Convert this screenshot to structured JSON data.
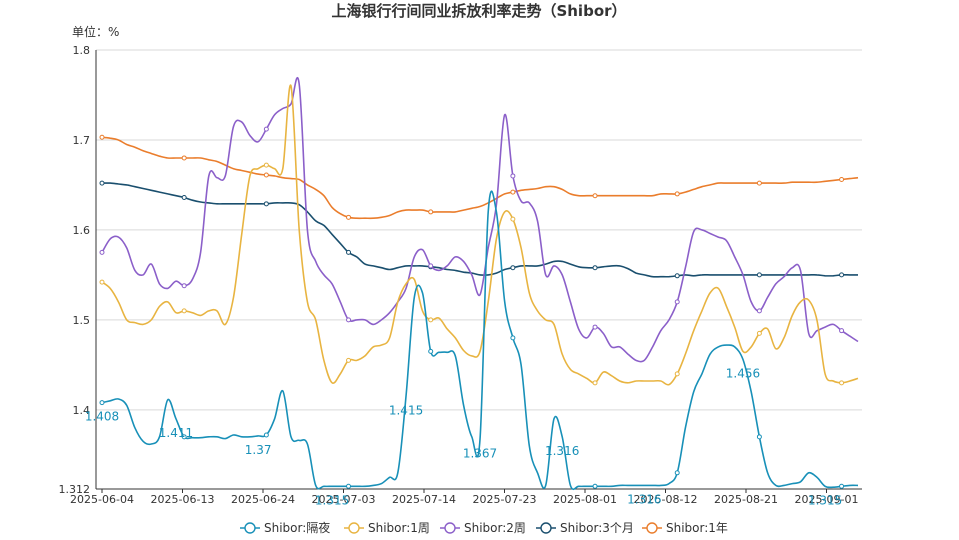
{
  "chart_data": {
    "type": "line",
    "title": "上海银行行间同业拆放利率走势（Shibor）",
    "unit_label": "单位：%",
    "ylim": [
      1.312,
      1.8
    ],
    "y_ticks": [
      "1.312",
      "1.4",
      "1.5",
      "1.6",
      "1.7",
      "1.8"
    ],
    "x_ticks": [
      "2025-06-04",
      "2025-06-13",
      "2025-06-24",
      "2025-07-03",
      "2025-07-14",
      "2025-07-23",
      "2025-08-01",
      "2025-08-12",
      "2025-08-21",
      "2025-09-01"
    ],
    "grid": true,
    "legend_position": "bottom",
    "series": [
      {
        "name": "Shibor:隔夜",
        "color": "#1890b8",
        "values": [
          1.408,
          1.41,
          1.412,
          1.405,
          1.38,
          1.365,
          1.362,
          1.37,
          1.411,
          1.39,
          1.37,
          1.369,
          1.369,
          1.37,
          1.37,
          1.368,
          1.372,
          1.37,
          1.37,
          1.371,
          1.372,
          1.39,
          1.421,
          1.37,
          1.366,
          1.362,
          1.316,
          1.315,
          1.315,
          1.315,
          1.315,
          1.315,
          1.315,
          1.316,
          1.318,
          1.325,
          1.33,
          1.415,
          1.525,
          1.53,
          1.465,
          1.464,
          1.464,
          1.46,
          1.405,
          1.37,
          1.367,
          1.62,
          1.62,
          1.52,
          1.48,
          1.45,
          1.36,
          1.33,
          1.316,
          1.39,
          1.37,
          1.316,
          1.315,
          1.315,
          1.315,
          1.315,
          1.315,
          1.316,
          1.316,
          1.316,
          1.316,
          1.316,
          1.316,
          1.318,
          1.33,
          1.38,
          1.42,
          1.44,
          1.462,
          1.47,
          1.472,
          1.47,
          1.456,
          1.42,
          1.37,
          1.33,
          1.316,
          1.316,
          1.318,
          1.32,
          1.33,
          1.325,
          1.315,
          1.314,
          1.315,
          1.316,
          1.316
        ],
        "labels": [
          [
            0,
            "1.408"
          ],
          [
            9,
            "1.411"
          ],
          [
            19,
            "1.37"
          ],
          [
            28,
            "1.315"
          ],
          [
            37,
            "1.415"
          ],
          [
            46,
            "1.367"
          ],
          [
            56,
            "1.316"
          ],
          [
            66,
            "1.316"
          ],
          [
            78,
            "1.456"
          ],
          [
            88,
            "1.315"
          ]
        ]
      },
      {
        "name": "Shibor:1周",
        "color": "#e8b441",
        "values": [
          1.542,
          1.535,
          1.52,
          1.5,
          1.497,
          1.495,
          1.5,
          1.515,
          1.52,
          1.508,
          1.51,
          1.508,
          1.505,
          1.51,
          1.51,
          1.495,
          1.525,
          1.595,
          1.66,
          1.668,
          1.672,
          1.668,
          1.668,
          1.76,
          1.6,
          1.52,
          1.5,
          1.455,
          1.43,
          1.44,
          1.455,
          1.455,
          1.46,
          1.47,
          1.472,
          1.48,
          1.52,
          1.54,
          1.545,
          1.51,
          1.5,
          1.502,
          1.49,
          1.48,
          1.466,
          1.46,
          1.465,
          1.52,
          1.59,
          1.62,
          1.612,
          1.58,
          1.53,
          1.51,
          1.5,
          1.495,
          1.462,
          1.445,
          1.44,
          1.435,
          1.43,
          1.442,
          1.438,
          1.432,
          1.43,
          1.432,
          1.432,
          1.432,
          1.432,
          1.428,
          1.44,
          1.462,
          1.488,
          1.51,
          1.53,
          1.535,
          1.515,
          1.492,
          1.465,
          1.47,
          1.485,
          1.49,
          1.468,
          1.48,
          1.505,
          1.52,
          1.522,
          1.5,
          1.44,
          1.432,
          1.43,
          1.432,
          1.435
        ],
        "labels": []
      },
      {
        "name": "Shibor:2周",
        "color": "#8b5fc9",
        "values": [
          1.575,
          1.59,
          1.592,
          1.58,
          1.555,
          1.55,
          1.562,
          1.54,
          1.535,
          1.543,
          1.538,
          1.545,
          1.575,
          1.66,
          1.658,
          1.66,
          1.715,
          1.72,
          1.705,
          1.698,
          1.712,
          1.728,
          1.735,
          1.74,
          1.762,
          1.6,
          1.565,
          1.55,
          1.54,
          1.52,
          1.5,
          1.5,
          1.5,
          1.495,
          1.5,
          1.508,
          1.52,
          1.535,
          1.57,
          1.578,
          1.56,
          1.555,
          1.56,
          1.57,
          1.565,
          1.55,
          1.528,
          1.58,
          1.628,
          1.728,
          1.66,
          1.632,
          1.63,
          1.61,
          1.55,
          1.56,
          1.55,
          1.52,
          1.49,
          1.48,
          1.492,
          1.485,
          1.47,
          1.47,
          1.462,
          1.455,
          1.455,
          1.47,
          1.488,
          1.5,
          1.52,
          1.558,
          1.598,
          1.6,
          1.596,
          1.592,
          1.588,
          1.57,
          1.55,
          1.52,
          1.51,
          1.525,
          1.54,
          1.548,
          1.558,
          1.555,
          1.485,
          1.488,
          1.492,
          1.495,
          1.488,
          1.482,
          1.476
        ],
        "labels": []
      },
      {
        "name": "Shibor:3个月",
        "color": "#1a4f6e",
        "values": [
          1.652,
          1.652,
          1.651,
          1.65,
          1.648,
          1.646,
          1.644,
          1.642,
          1.64,
          1.638,
          1.636,
          1.633,
          1.631,
          1.63,
          1.629,
          1.629,
          1.629,
          1.629,
          1.629,
          1.629,
          1.629,
          1.63,
          1.63,
          1.63,
          1.628,
          1.62,
          1.61,
          1.605,
          1.595,
          1.585,
          1.575,
          1.57,
          1.562,
          1.56,
          1.558,
          1.556,
          1.558,
          1.56,
          1.56,
          1.56,
          1.559,
          1.558,
          1.556,
          1.555,
          1.553,
          1.552,
          1.55,
          1.55,
          1.552,
          1.556,
          1.558,
          1.56,
          1.56,
          1.56,
          1.562,
          1.565,
          1.565,
          1.562,
          1.559,
          1.558,
          1.558,
          1.559,
          1.56,
          1.56,
          1.557,
          1.552,
          1.55,
          1.548,
          1.548,
          1.548,
          1.549,
          1.55,
          1.549,
          1.55,
          1.55,
          1.55,
          1.55,
          1.55,
          1.55,
          1.55,
          1.55,
          1.55,
          1.55,
          1.55,
          1.55,
          1.55,
          1.55,
          1.55,
          1.549,
          1.549,
          1.55,
          1.55,
          1.55
        ],
        "labels": []
      },
      {
        "name": "Shibor:1年",
        "color": "#ea7d2c",
        "values": [
          1.703,
          1.702,
          1.7,
          1.695,
          1.692,
          1.688,
          1.685,
          1.682,
          1.68,
          1.68,
          1.68,
          1.68,
          1.68,
          1.678,
          1.676,
          1.672,
          1.668,
          1.666,
          1.664,
          1.662,
          1.661,
          1.66,
          1.658,
          1.657,
          1.656,
          1.65,
          1.645,
          1.638,
          1.625,
          1.618,
          1.614,
          1.613,
          1.613,
          1.613,
          1.614,
          1.616,
          1.62,
          1.622,
          1.622,
          1.622,
          1.62,
          1.62,
          1.62,
          1.62,
          1.622,
          1.624,
          1.626,
          1.63,
          1.635,
          1.64,
          1.642,
          1.644,
          1.645,
          1.646,
          1.648,
          1.648,
          1.645,
          1.64,
          1.638,
          1.638,
          1.638,
          1.638,
          1.638,
          1.638,
          1.638,
          1.638,
          1.638,
          1.638,
          1.64,
          1.64,
          1.64,
          1.642,
          1.645,
          1.648,
          1.65,
          1.652,
          1.652,
          1.652,
          1.652,
          1.652,
          1.652,
          1.652,
          1.652,
          1.652,
          1.653,
          1.653,
          1.653,
          1.653,
          1.654,
          1.655,
          1.656,
          1.657,
          1.658
        ],
        "labels": []
      }
    ]
  }
}
